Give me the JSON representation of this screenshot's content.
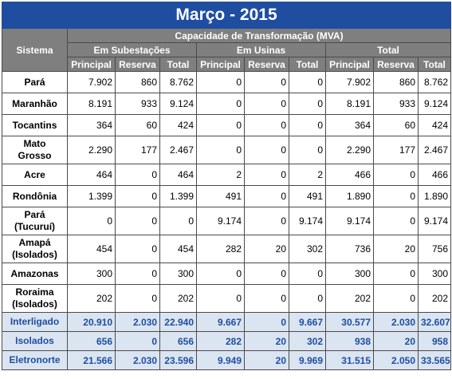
{
  "title": "Março - 2015",
  "header": {
    "sistema": "Sistema",
    "capacidade": "Capacidade de Transformação (MVA)",
    "groups": [
      "Em Subestações",
      "Em Usinas",
      "Total"
    ],
    "sub": [
      "Principal",
      "Reserva",
      "Total"
    ]
  },
  "rows": [
    {
      "sistema": "Pará",
      "v": [
        "7.902",
        "860",
        "8.762",
        "0",
        "0",
        "0",
        "7.902",
        "860",
        "8.762"
      ]
    },
    {
      "sistema": "Maranhão",
      "v": [
        "8.191",
        "933",
        "9.124",
        "0",
        "0",
        "0",
        "8.191",
        "933",
        "9.124"
      ]
    },
    {
      "sistema": "Tocantins",
      "v": [
        "364",
        "60",
        "424",
        "0",
        "0",
        "0",
        "364",
        "60",
        "424"
      ]
    },
    {
      "sistema": "Mato\nGrosso",
      "v": [
        "2.290",
        "177",
        "2.467",
        "0",
        "0",
        "0",
        "2.290",
        "177",
        "2.467"
      ]
    },
    {
      "sistema": "Acre",
      "v": [
        "464",
        "0",
        "464",
        "2",
        "0",
        "2",
        "466",
        "0",
        "466"
      ]
    },
    {
      "sistema": "Rondônia",
      "v": [
        "1.399",
        "0",
        "1.399",
        "491",
        "0",
        "491",
        "1.890",
        "0",
        "1.890"
      ]
    },
    {
      "sistema": "Pará\n(Tucuruí)",
      "v": [
        "0",
        "0",
        "0",
        "9.174",
        "0",
        "9.174",
        "9.174",
        "0",
        "9.174"
      ]
    },
    {
      "sistema": "Amapá\n(Isolados)",
      "v": [
        "454",
        "0",
        "454",
        "282",
        "20",
        "302",
        "736",
        "20",
        "756"
      ]
    },
    {
      "sistema": "Amazonas",
      "v": [
        "300",
        "0",
        "300",
        "0",
        "0",
        "0",
        "300",
        "0",
        "300"
      ]
    },
    {
      "sistema": "Roraima\n(Isolados)",
      "v": [
        "202",
        "0",
        "202",
        "0",
        "0",
        "0",
        "202",
        "0",
        "202"
      ]
    }
  ],
  "summary": [
    {
      "sistema": "Interligado",
      "v": [
        "20.910",
        "2.030",
        "22.940",
        "9.667",
        "0",
        "9.667",
        "30.577",
        "2.030",
        "32.607"
      ]
    },
    {
      "sistema": "Isolados",
      "v": [
        "656",
        "0",
        "656",
        "282",
        "20",
        "302",
        "938",
        "20",
        "958"
      ]
    },
    {
      "sistema": "Eletronorte",
      "v": [
        "21.566",
        "2.030",
        "23.596",
        "9.949",
        "20",
        "9.969",
        "31.515",
        "2.050",
        "33.565"
      ]
    }
  ]
}
